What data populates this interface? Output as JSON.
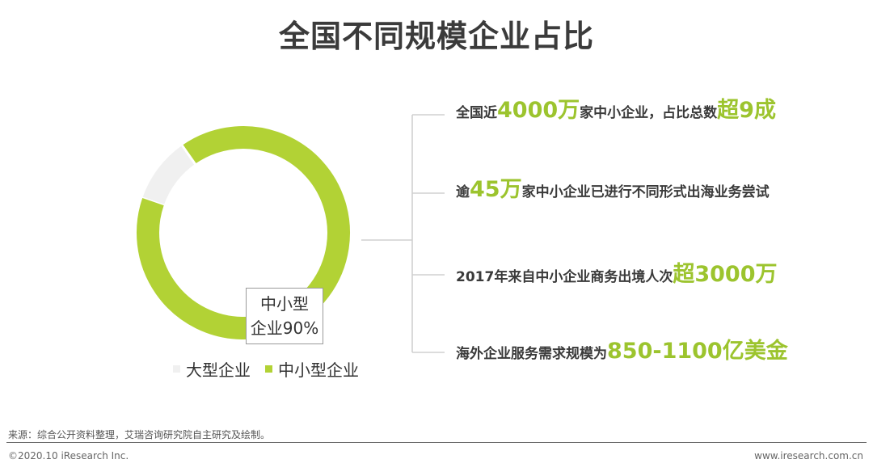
{
  "title": "全国不同规模企业占比",
  "chart_data": {
    "type": "pie",
    "variant": "donut",
    "title": "全国不同规模企业占比",
    "slices": [
      {
        "name": "大型企业",
        "value": 10,
        "color": "#f0f0f0"
      },
      {
        "name": "中小型企业",
        "value": 90,
        "color": "#b2d235"
      }
    ],
    "data_label": {
      "line1": "中小型",
      "line2": "企业90%"
    },
    "legend": [
      "大型企业",
      "中小型企业"
    ],
    "legend_position": "bottom"
  },
  "facts": [
    {
      "parts": [
        {
          "t": "全国近"
        },
        {
          "t": "4000万",
          "hl": true
        },
        {
          "t": "家中小企业，占比总数"
        },
        {
          "t": "超9成",
          "hl": true
        }
      ]
    },
    {
      "parts": [
        {
          "t": "逾"
        },
        {
          "t": "45万",
          "hl": true
        },
        {
          "t": "家中小企业已进行不同形式出海业务尝试"
        }
      ]
    },
    {
      "parts": [
        {
          "t": "2017年来自中小企业商务出境人次"
        },
        {
          "t": "超3000万",
          "hl": true
        }
      ]
    },
    {
      "parts": [
        {
          "t": "海外企业服务需求规模为"
        },
        {
          "t": "850-1100亿美金",
          "hl": true
        }
      ]
    }
  ],
  "footer": {
    "source": "来源：综合公开资料整理，艾瑞咨询研究院自主研究及绘制。",
    "copyright": "©2020.10 iResearch Inc.",
    "website": "www.iresearch.com.cn"
  }
}
